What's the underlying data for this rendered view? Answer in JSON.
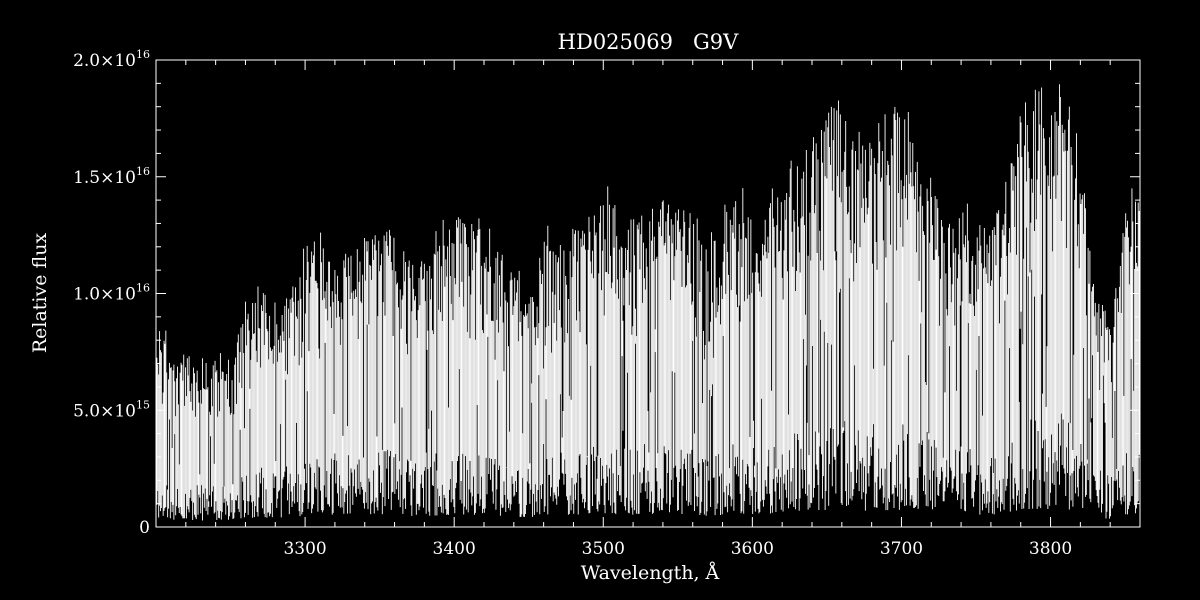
{
  "chart_data": {
    "type": "line",
    "title": "HD025069   G9V",
    "xlabel": "Wavelength, Å",
    "ylabel": "Relative flux",
    "xlim": [
      3200,
      3860
    ],
    "ylim": [
      0,
      2e+16
    ],
    "x_ticks": [
      3300,
      3400,
      3500,
      3600,
      3700,
      3800
    ],
    "x_tick_labels": [
      "3300",
      "3400",
      "3500",
      "3600",
      "3700",
      "3800"
    ],
    "y_ticks": [
      0,
      5000000000000000.0,
      1e+16,
      1.5e+16,
      2e+16
    ],
    "y_tick_labels": [
      {
        "mantissa": "0",
        "exponent": ""
      },
      {
        "mantissa": "5.0×10",
        "exponent": "15"
      },
      {
        "mantissa": "1.0×10",
        "exponent": "16"
      },
      {
        "mantissa": "1.5×10",
        "exponent": "16"
      },
      {
        "mantissa": "2.0×10",
        "exponent": "16"
      }
    ],
    "grid": false,
    "colors": {
      "background": "#000000",
      "foreground": "#ffffff"
    },
    "series": [
      {
        "envelope_x": [
          3200,
          3210,
          3220,
          3230,
          3240,
          3250,
          3255,
          3260,
          3270,
          3280,
          3290,
          3295,
          3300,
          3310,
          3320,
          3330,
          3340,
          3350,
          3360,
          3370,
          3380,
          3390,
          3400,
          3410,
          3420,
          3430,
          3440,
          3450,
          3460,
          3470,
          3480,
          3490,
          3500,
          3510,
          3520,
          3530,
          3540,
          3550,
          3560,
          3570,
          3580,
          3590,
          3600,
          3610,
          3620,
          3630,
          3640,
          3650,
          3660,
          3670,
          3680,
          3690,
          3700,
          3710,
          3720,
          3730,
          3740,
          3750,
          3760,
          3770,
          3780,
          3790,
          3800,
          3810,
          3820,
          3830,
          3840,
          3850,
          3860
        ],
        "envelope_y": [
          8600000000000000.0,
          7800000000000000.0,
          7400000000000000.0,
          7000000000000000.0,
          7200000000000000.0,
          7500000000000000.0,
          8800000000000000.0,
          9600000000000000.0,
          9900000000000000.0,
          9700000000000000.0,
          1.02e+16,
          1.12e+16,
          1.22e+16,
          1.2e+16,
          1.22e+16,
          1.18e+16,
          1.24e+16,
          1.3e+16,
          1.26e+16,
          1.14e+16,
          1.18e+16,
          1.22e+16,
          1.35e+16,
          1.3e+16,
          1.28e+16,
          1.2e+16,
          1.08e+16,
          1.02e+16,
          1.22e+16,
          1.28e+16,
          1.3e+16,
          1.32e+16,
          1.4e+16,
          1.38e+16,
          1.32e+16,
          1.4e+16,
          1.42e+16,
          1.38e+16,
          1.34e+16,
          1.18e+16,
          1.3e+16,
          1.42e+16,
          1.32e+16,
          1.38e+16,
          1.44e+16,
          1.6e+16,
          1.66e+16,
          1.8e+16,
          1.84e+16,
          1.68e+16,
          1.72e+16,
          1.78e+16,
          1.82e+16,
          1.6e+16,
          1.55e+16,
          1.3e+16,
          1.38e+16,
          1.25e+16,
          1.32e+16,
          1.48e+16,
          1.78e+16,
          1.94e+16,
          1.82e+16,
          1.96e+16,
          1.6e+16,
          1e+16,
          8800000000000000.0,
          1.3e+16,
          1.48e+16
        ]
      }
    ]
  }
}
